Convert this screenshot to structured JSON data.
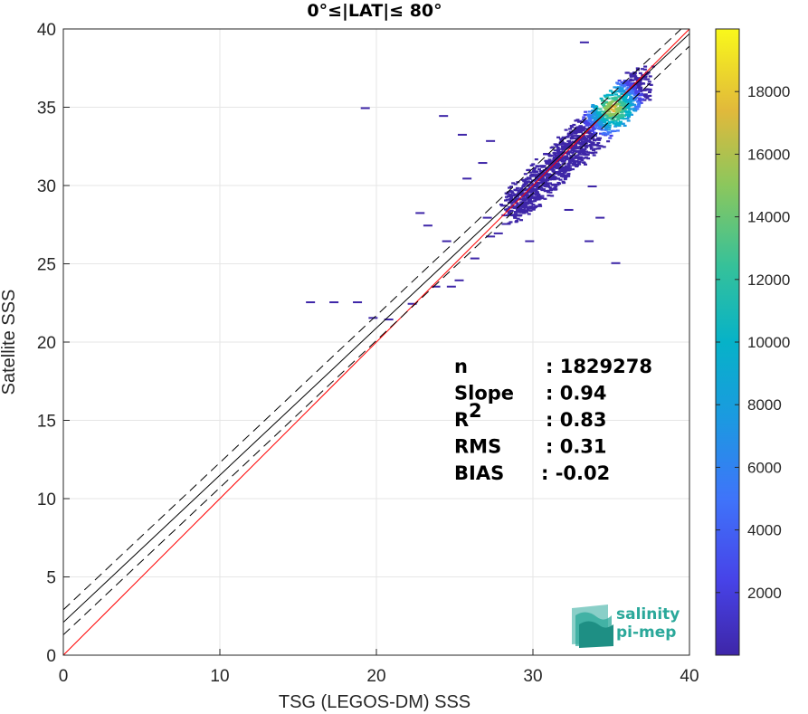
{
  "chart_data": {
    "type": "heatmap",
    "title": "0°≤|LAT|≤ 80°",
    "xlabel": "TSG (LEGOS-DM) SSS",
    "ylabel": "Satellite SSS",
    "xlim": [
      0,
      40
    ],
    "ylim": [
      0,
      40
    ],
    "xticks": [
      "0",
      "10",
      "20",
      "30",
      "40"
    ],
    "yticks": [
      "0",
      "5",
      "10",
      "15",
      "20",
      "25",
      "30",
      "35",
      "40"
    ],
    "grid": true,
    "colorbar": {
      "range": [
        0,
        20000
      ],
      "ticks": [
        "2000",
        "4000",
        "6000",
        "8000",
        "10000",
        "12000",
        "14000",
        "16000",
        "18000"
      ],
      "colormap": "parula"
    },
    "reference_lines": [
      {
        "name": "1:1",
        "slope": 1.0,
        "intercept": 0.0,
        "color": "#ff0000",
        "style": "solid"
      },
      {
        "name": "fit",
        "slope": 0.94,
        "intercept": 2.1,
        "color": "#000000",
        "style": "solid"
      },
      {
        "name": "fit+",
        "slope": 0.94,
        "intercept": 2.9,
        "color": "#000000",
        "style": "dashed"
      },
      {
        "name": "fit-",
        "slope": 0.94,
        "intercept": 1.3,
        "color": "#000000",
        "style": "dashed"
      }
    ],
    "density_core": {
      "x": 35.0,
      "y": 35.0
    },
    "stats": [
      {
        "label": "n",
        "value": ": 1829278"
      },
      {
        "label": "Slope",
        "value": ": 0.94"
      },
      {
        "label": "R",
        "sup": "2",
        "value": ": 0.83"
      },
      {
        "label": "RMS",
        "value": ": 0.31"
      },
      {
        "label": "BIAS",
        "value": ": -0.02"
      }
    ]
  },
  "logo": {
    "line1": "salinity",
    "line2": "pi-mep"
  }
}
